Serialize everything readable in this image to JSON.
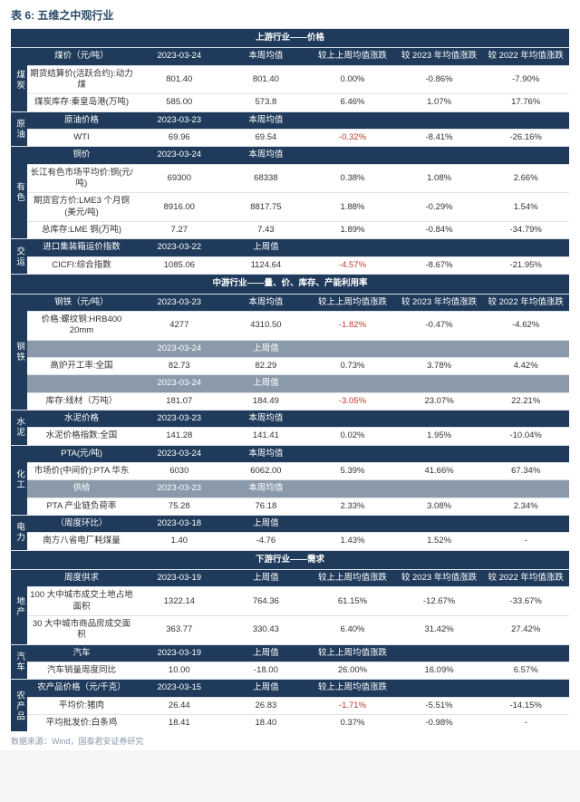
{
  "title": "表 6: 五维之中观行业",
  "source": "数据来源：Wind，国泰君安证券研究",
  "colors": {
    "header_bg": "#1f3a5a",
    "header_fg": "#ffffff",
    "subhdr_bg": "#8a9aaa",
    "negative": "#c0392b",
    "border": "#dde3ea"
  },
  "sections": [
    {
      "title": "上游行业——价格"
    },
    {
      "title": "中游行业——量、价、库存、产能利用率"
    },
    {
      "title": "下游行业——需求"
    }
  ],
  "upstream": {
    "coal": {
      "cat": "煤炭",
      "hdr": [
        "煤价（元/吨）",
        "2023-03-24",
        "本周均值",
        "较上上周均值涨跌",
        "较 2023 年均值涨跌",
        "较 2022 年均值涨跌"
      ],
      "rows": [
        [
          "期货结算价(活跃合约):动力煤",
          "801.40",
          "801.40",
          "0.00%",
          "-0.86%",
          "-7.90%"
        ],
        [
          "煤炭库存:秦皇岛港(万吨)",
          "585.00",
          "573.8",
          "6.46%",
          "1.07%",
          "17.76%"
        ]
      ]
    },
    "oil": {
      "cat": "原油",
      "hdr": [
        "原油价格",
        "2023-03-23",
        "本周均值",
        "",
        "",
        ""
      ],
      "rows": [
        [
          "WTI",
          "69.96",
          "69.54",
          {
            "v": "-0.32%",
            "neg": true
          },
          "-8.41%",
          "-26.16%"
        ]
      ]
    },
    "metal": {
      "cat": "有色",
      "hdr": [
        "铜价",
        "2023-03-24",
        "本周均值",
        "",
        "",
        ""
      ],
      "rows": [
        [
          "长江有色市场平均价:铜(元/吨)",
          "69300",
          "68338",
          "0.38%",
          "1.08%",
          "2.66%"
        ],
        [
          "期货官方价:LME3 个月铜(美元/吨)",
          "8916.00",
          "8817.75",
          "1.88%",
          "-0.29%",
          "1.54%"
        ],
        [
          "总库存:LME 铜(万吨)",
          "7.27",
          "7.43",
          "1.89%",
          "-0.84%",
          "-34.79%"
        ]
      ]
    },
    "ship": {
      "cat": "交运",
      "hdr": [
        "进口集装箱运价指数",
        "2023-03-22",
        "上周值",
        "",
        "",
        ""
      ],
      "rows": [
        [
          "CICFI:综合指数",
          "1085.06",
          "1124.64",
          {
            "v": "-4.57%",
            "neg": true
          },
          "-8.67%",
          "-21.95%"
        ]
      ]
    }
  },
  "midstream": {
    "steel": {
      "cat": "钢铁",
      "hdr": [
        "钢铁（元/吨）",
        "2023-03-23",
        "本周均值",
        "较上上周均值涨跌",
        "较 2023 年均值涨跌",
        "较 2022 年均值涨跌"
      ],
      "rows": [
        [
          "价格:螺纹钢:HRB400 20mm",
          "4277",
          "4310.50",
          {
            "v": "-1.82%",
            "neg": true
          },
          "-0.47%",
          "-4.62%"
        ]
      ],
      "hdr2": [
        "",
        "2023-03-24",
        "上周值",
        "",
        "",
        ""
      ],
      "rows2": [
        [
          "高炉开工率:全国",
          "82.73",
          "82.29",
          "0.73%",
          "3.78%",
          "4.42%"
        ]
      ],
      "hdr3": [
        "",
        "2023-03-24",
        "上周值",
        "",
        "",
        ""
      ],
      "rows3": [
        [
          "库存:线材（万吨）",
          "181.07",
          "184.49",
          {
            "v": "-3.05%",
            "neg": true
          },
          "23.07%",
          "22.21%"
        ]
      ]
    },
    "cement": {
      "cat": "水泥",
      "hdr": [
        "水泥价格",
        "2023-03-23",
        "本周均值",
        "",
        "",
        ""
      ],
      "rows": [
        [
          "水泥价格指数:全国",
          "141.28",
          "141.41",
          "0.02%",
          "1.95%",
          "-10.04%"
        ]
      ]
    },
    "chem": {
      "cat": "化工",
      "hdr": [
        "PTA(元/吨)",
        "2023-03-24",
        "本周均值",
        "",
        "",
        ""
      ],
      "rows": [
        [
          "市场价(中间价):PTA 华东",
          "6030",
          "6062.00",
          "5.39%",
          "41.66%",
          "67.34%"
        ]
      ],
      "hdr2": [
        "供给",
        "2023-03-23",
        "本周均值",
        "",
        "",
        ""
      ],
      "rows2": [
        [
          "PTA 产业链负荷率",
          "75.28",
          "76.18",
          "2.33%",
          "3.08%",
          "2.34%"
        ]
      ]
    },
    "power": {
      "cat": "电力",
      "hdr": [
        "（周度环比）",
        "2023-03-18",
        "上周值",
        "",
        "",
        ""
      ],
      "rows": [
        [
          "南方八省电厂耗煤量",
          "1.40",
          "-4.76",
          "1.43%",
          "1.52%",
          "-"
        ]
      ]
    }
  },
  "downstream": {
    "realestate": {
      "cat": "地产",
      "hdr": [
        "周度供求",
        "2023-03-19",
        "上周值",
        "较上上周均值涨跌",
        "较 2023 年均值涨跌",
        "较 2022 年均值涨跌"
      ],
      "rows": [
        [
          "100 大中城市成交土地占地面积",
          "1322.14",
          "764.36",
          "61.15%",
          "-12.67%",
          "-33.67%"
        ],
        [
          "30 大中城市商品房成交面积",
          "363.77",
          "330.43",
          "6.40%",
          "31.42%",
          "27.42%"
        ]
      ]
    },
    "auto": {
      "cat": "汽车",
      "hdr": [
        "汽车",
        "2023-03-19",
        "上周值",
        "较上上周均值涨跌",
        "",
        ""
      ],
      "rows": [
        [
          "汽车销量周度同比",
          "10.00",
          "-18.00",
          "26.00%",
          "16.09%",
          "6.57%"
        ]
      ]
    },
    "agri": {
      "cat": "农产品",
      "hdr": [
        "农产品价格（元/千克）",
        "2023-03-15",
        "上周值",
        "较上上周均值涨跌",
        "",
        ""
      ],
      "rows": [
        [
          "平均价:猪肉",
          "26.44",
          "26.83",
          {
            "v": "-1.71%",
            "neg": true
          },
          "-5.51%",
          "-14.15%"
        ],
        [
          "平均批发价:白条鸡",
          "18.41",
          "18.40",
          "0.37%",
          "-0.98%",
          "-"
        ]
      ]
    }
  }
}
